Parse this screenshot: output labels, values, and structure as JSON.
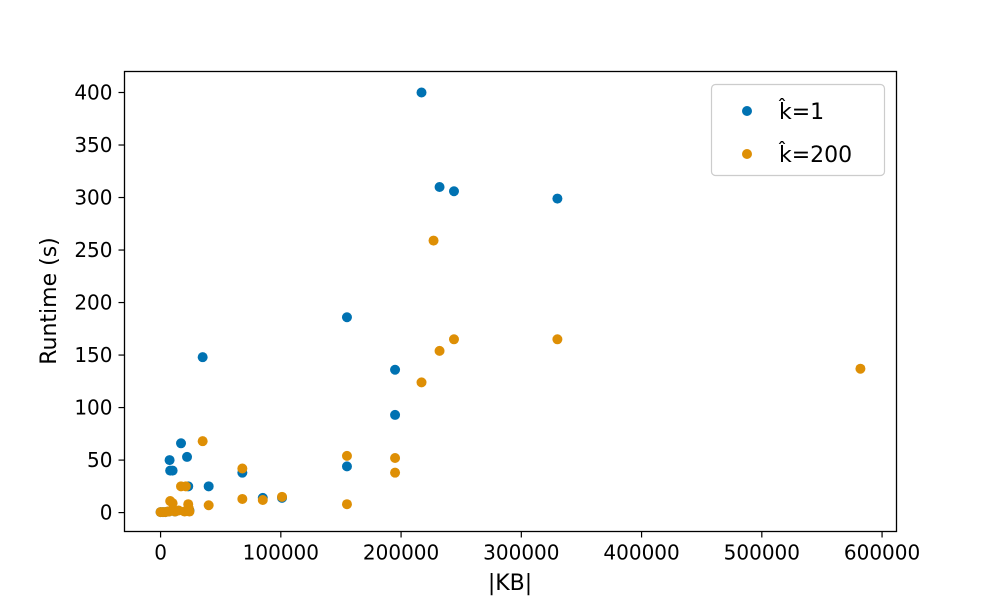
{
  "chart_data": {
    "type": "scatter",
    "xlabel": "|KB|",
    "ylabel": "Runtime (s)",
    "xlim": [
      -30000,
      612000
    ],
    "ylim": [
      -18,
      420
    ],
    "xticks": [
      0,
      100000,
      200000,
      300000,
      400000,
      500000,
      600000
    ],
    "xtick_labels": [
      "0",
      "100000",
      "200000",
      "300000",
      "400000",
      "500000",
      "600000"
    ],
    "yticks": [
      0,
      50,
      100,
      150,
      200,
      250,
      300,
      350,
      400
    ],
    "ytick_labels": [
      "0",
      "50",
      "100",
      "150",
      "200",
      "250",
      "300",
      "350",
      "400"
    ],
    "grid": false,
    "legend_position": "top-right",
    "series": [
      {
        "name": "k̂=1",
        "color": "#0072b2",
        "points": [
          [
            0,
            0.5
          ],
          [
            2000,
            0.5
          ],
          [
            4000,
            0.5
          ],
          [
            7000,
            1
          ],
          [
            7500,
            50
          ],
          [
            8000,
            40
          ],
          [
            10000,
            40
          ],
          [
            12000,
            1
          ],
          [
            17000,
            66
          ],
          [
            22000,
            53
          ],
          [
            23000,
            25
          ],
          [
            24000,
            2
          ],
          [
            35000,
            148
          ],
          [
            40000,
            25
          ],
          [
            68000,
            38
          ],
          [
            85000,
            14
          ],
          [
            101000,
            14
          ],
          [
            155000,
            186
          ],
          [
            155000,
            44
          ],
          [
            195000,
            136
          ],
          [
            195000,
            93
          ],
          [
            217000,
            400
          ],
          [
            232000,
            310
          ],
          [
            244000,
            306
          ],
          [
            330000,
            299
          ]
        ]
      },
      {
        "name": "k̂=200",
        "color": "#de8f05",
        "points": [
          [
            0,
            0.5
          ],
          [
            2000,
            0.5
          ],
          [
            4000,
            0.5
          ],
          [
            6000,
            1
          ],
          [
            7000,
            1
          ],
          [
            8000,
            11
          ],
          [
            10000,
            9
          ],
          [
            12000,
            1
          ],
          [
            15000,
            2
          ],
          [
            17000,
            25
          ],
          [
            20000,
            1
          ],
          [
            21000,
            25
          ],
          [
            23000,
            8
          ],
          [
            23500,
            4
          ],
          [
            24000,
            1
          ],
          [
            35000,
            68
          ],
          [
            40000,
            7
          ],
          [
            68000,
            42
          ],
          [
            68000,
            13
          ],
          [
            85000,
            12
          ],
          [
            101000,
            15
          ],
          [
            155000,
            54
          ],
          [
            155000,
            8
          ],
          [
            195000,
            52
          ],
          [
            195000,
            38
          ],
          [
            217000,
            124
          ],
          [
            227000,
            259
          ],
          [
            232000,
            154
          ],
          [
            244000,
            165
          ],
          [
            330000,
            165
          ],
          [
            582000,
            137
          ]
        ]
      }
    ]
  }
}
